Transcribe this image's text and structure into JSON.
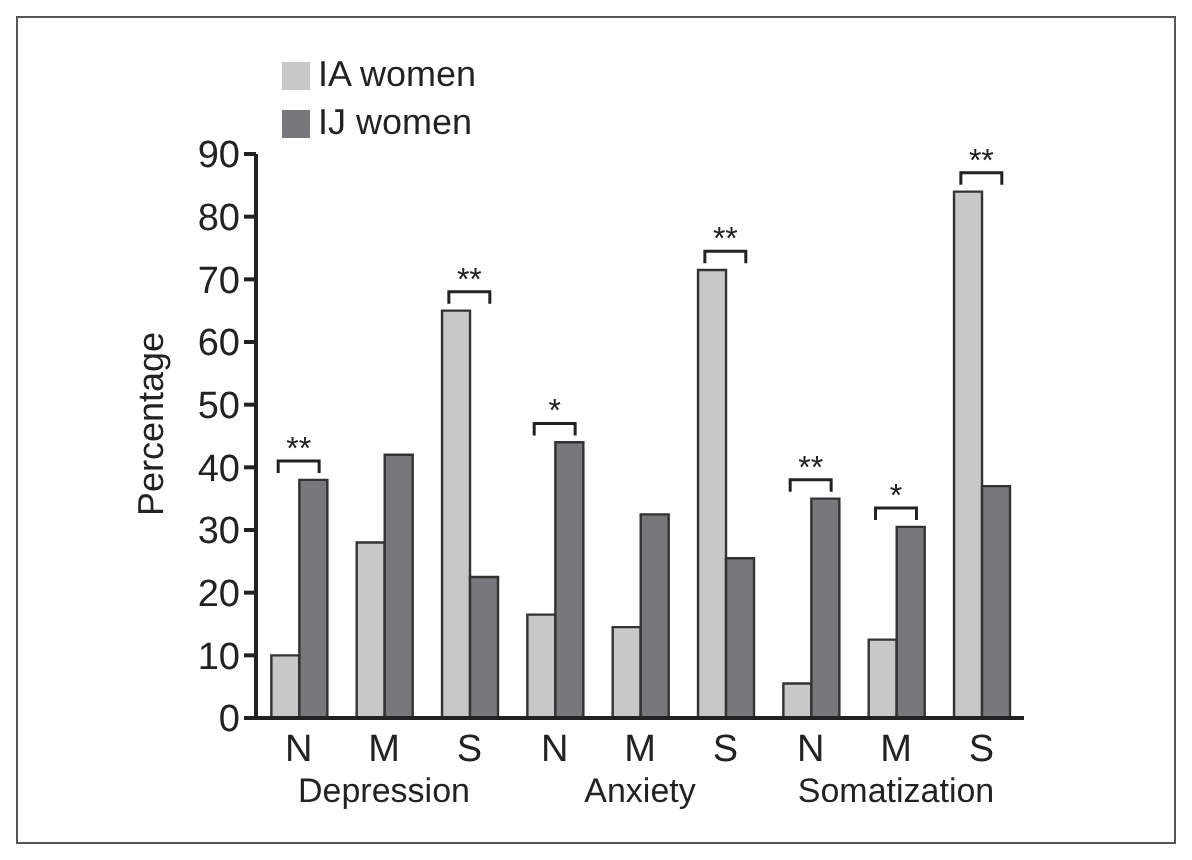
{
  "chart_data": {
    "type": "bar",
    "ylabel": "Percentage",
    "categories": [
      "N",
      "M",
      "S",
      "N",
      "M",
      "S",
      "N",
      "M",
      "S"
    ],
    "series": [
      {
        "name": "IA women",
        "color": "#c8c8c8",
        "values": [
          10,
          28,
          65,
          16.5,
          14.5,
          71.5,
          5.5,
          12.5,
          84
        ]
      },
      {
        "name": "IJ women",
        "color": "#78787c",
        "values": [
          38,
          42,
          22.5,
          44,
          32.5,
          25.5,
          35,
          30.5,
          37
        ]
      }
    ],
    "ylim": [
      0,
      90
    ],
    "yticks": [
      0,
      10,
      20,
      30,
      40,
      50,
      60,
      70,
      80,
      90
    ],
    "grid": false,
    "legend": "top left",
    "annotations": [
      "**",
      "**",
      "*",
      "**",
      "**",
      "*",
      "**",
      "Depression",
      "Anxiety",
      "Somatization"
    ]
  }
}
